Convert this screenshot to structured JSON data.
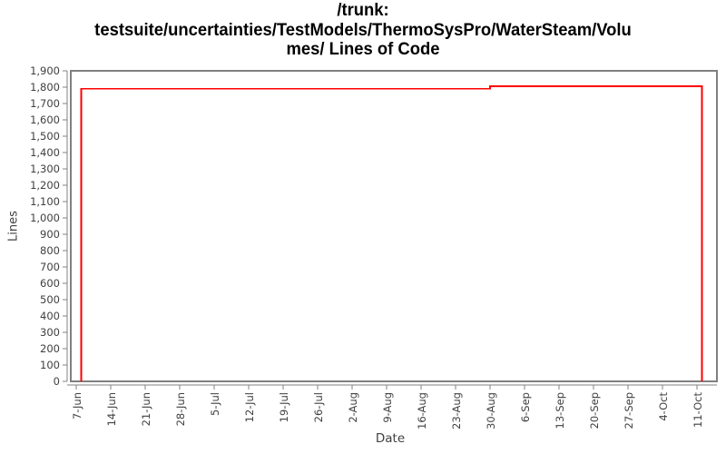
{
  "title": {
    "full": "/trunk: testsuite/uncertainties/TestModels/ThermoSysPro/WaterSteam/Volumes/ Lines of Code",
    "lines": [
      "/trunk:",
      "testsuite/uncertainties/TestModels/ThermoSysPro/WaterSteam/Volu",
      "mes/ Lines of Code"
    ]
  },
  "axes": {
    "x_label": "Date",
    "y_label": "Lines"
  },
  "colors": {
    "line": "#ff0000",
    "axis": "#808080",
    "tick_labels": "#404040",
    "title": "#000000",
    "background": "#ffffff"
  },
  "chart_data": {
    "type": "line",
    "subtype": "step",
    "title": "/trunk: testsuite/uncertainties/TestModels/ThermoSysPro/WaterSteam/Volumes/ Lines of Code",
    "xlabel": "Date",
    "ylabel": "Lines",
    "ylim": [
      0,
      1900
    ],
    "ytick_step": 100,
    "y_ticks": [
      "0",
      "100",
      "200",
      "300",
      "400",
      "500",
      "600",
      "700",
      "800",
      "900",
      "1,000",
      "1,100",
      "1,200",
      "1,300",
      "1,400",
      "1,500",
      "1,600",
      "1,700",
      "1,800",
      "1,900"
    ],
    "x_ticks": [
      "7-Jun",
      "14-Jun",
      "21-Jun",
      "28-Jun",
      "5-Jul",
      "12-Jul",
      "19-Jul",
      "26-Jul",
      "2-Aug",
      "9-Aug",
      "16-Aug",
      "23-Aug",
      "30-Aug",
      "6-Sep",
      "13-Sep",
      "20-Sep",
      "27-Sep",
      "4-Oct",
      "11-Oct"
    ],
    "x_tick_interval_days": 7,
    "grid": false,
    "legend": false,
    "series": [
      {
        "name": "Lines of Code",
        "color": "#ff0000",
        "points": [
          {
            "date": "8-Jun",
            "day_offset": 1,
            "lines": 0
          },
          {
            "date": "8-Jun",
            "day_offset": 1,
            "lines": 1790
          },
          {
            "date": "30-Aug",
            "day_offset": 84,
            "lines": 1790
          },
          {
            "date": "30-Aug",
            "day_offset": 84,
            "lines": 1805
          },
          {
            "date": "12-Oct",
            "day_offset": 127,
            "lines": 1805
          },
          {
            "date": "12-Oct",
            "day_offset": 127,
            "lines": 0
          }
        ]
      }
    ]
  }
}
